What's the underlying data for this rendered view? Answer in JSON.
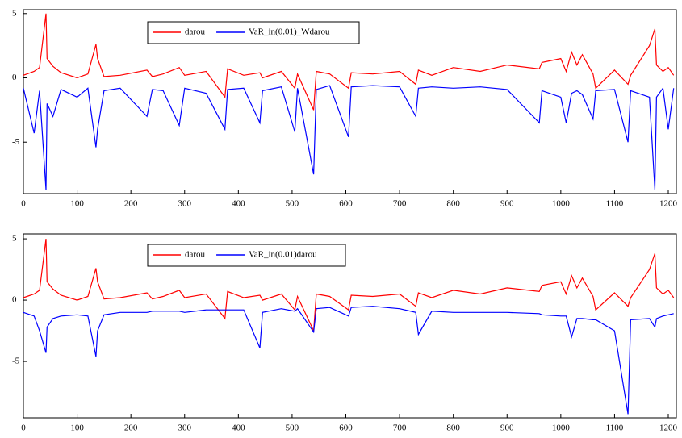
{
  "chart_data": [
    {
      "type": "line",
      "x": [
        0,
        20,
        30,
        42,
        44,
        55,
        70,
        100,
        120,
        135,
        138,
        150,
        180,
        230,
        240,
        260,
        290,
        300,
        340,
        375,
        380,
        410,
        440,
        445,
        480,
        505,
        510,
        540,
        545,
        570,
        605,
        610,
        650,
        700,
        730,
        735,
        760,
        800,
        850,
        900,
        960,
        965,
        1000,
        1010,
        1020,
        1030,
        1040,
        1060,
        1065,
        1100,
        1125,
        1130,
        1165,
        1175,
        1178,
        1190,
        1200,
        1210
      ],
      "series": [
        {
          "name": "darou",
          "color": "#ff0000",
          "values": [
            0.2,
            0.5,
            0.8,
            5.0,
            1.5,
            0.9,
            0.4,
            0.0,
            0.3,
            2.6,
            1.5,
            0.1,
            0.2,
            0.6,
            0.1,
            0.3,
            0.8,
            0.2,
            0.5,
            -1.5,
            0.7,
            0.2,
            0.4,
            0.0,
            0.5,
            -0.8,
            0.3,
            -2.5,
            0.5,
            0.3,
            -0.8,
            0.4,
            0.3,
            0.5,
            -0.5,
            0.6,
            0.2,
            0.8,
            0.5,
            1.0,
            0.7,
            1.2,
            1.5,
            0.5,
            2.0,
            1.0,
            1.8,
            0.3,
            -0.8,
            0.6,
            -0.5,
            0.2,
            2.5,
            3.8,
            1.0,
            0.5,
            0.8,
            0.2
          ]
        },
        {
          "name": "VaR_in(0.01)_Wdarou",
          "color": "#0000ff",
          "values": [
            -0.8,
            -4.3,
            -1.0,
            -8.7,
            -2.0,
            -3.0,
            -0.9,
            -1.5,
            -0.8,
            -5.4,
            -4.0,
            -1.0,
            -0.8,
            -3.0,
            -0.9,
            -1.0,
            -3.7,
            -0.8,
            -1.2,
            -4.0,
            -0.9,
            -0.8,
            -3.5,
            -1.0,
            -0.7,
            -4.2,
            -0.8,
            -7.5,
            -0.9,
            -0.6,
            -4.6,
            -0.7,
            -0.6,
            -0.7,
            -3.0,
            -0.8,
            -0.7,
            -0.8,
            -0.7,
            -0.9,
            -3.5,
            -1.0,
            -1.5,
            -3.5,
            -1.2,
            -1.0,
            -1.3,
            -3.2,
            -1.0,
            -0.9,
            -5.0,
            -1.0,
            -1.5,
            -8.7,
            -1.5,
            -0.8,
            -4.0,
            -0.8
          ]
        }
      ],
      "xlim": [
        0,
        1215
      ],
      "xticks": [
        0,
        100,
        200,
        300,
        400,
        500,
        600,
        700,
        800,
        900,
        1000,
        1100,
        1200
      ],
      "ylim": [
        -9.0,
        5.3
      ],
      "yticks": [
        5,
        0,
        -5
      ]
    },
    {
      "type": "line",
      "x": [
        0,
        20,
        30,
        42,
        44,
        55,
        70,
        100,
        120,
        135,
        138,
        150,
        180,
        230,
        240,
        260,
        290,
        300,
        340,
        375,
        380,
        410,
        440,
        445,
        480,
        505,
        510,
        540,
        545,
        570,
        605,
        610,
        650,
        700,
        730,
        735,
        760,
        800,
        850,
        900,
        960,
        965,
        1000,
        1010,
        1020,
        1030,
        1040,
        1060,
        1065,
        1100,
        1125,
        1130,
        1165,
        1175,
        1178,
        1190,
        1200,
        1210
      ],
      "series": [
        {
          "name": "darou",
          "color": "#ff0000",
          "values": [
            0.2,
            0.5,
            0.8,
            5.0,
            1.5,
            0.9,
            0.4,
            0.0,
            0.3,
            2.6,
            1.5,
            0.1,
            0.2,
            0.6,
            0.1,
            0.3,
            0.8,
            0.2,
            0.5,
            -1.5,
            0.7,
            0.2,
            0.4,
            0.0,
            0.5,
            -0.8,
            0.3,
            -2.5,
            0.5,
            0.3,
            -0.8,
            0.4,
            0.3,
            0.5,
            -0.5,
            0.6,
            0.2,
            0.8,
            0.5,
            1.0,
            0.7,
            1.2,
            1.5,
            0.5,
            2.0,
            1.0,
            1.8,
            0.3,
            -0.8,
            0.6,
            -0.5,
            0.2,
            2.5,
            3.8,
            1.0,
            0.5,
            0.8,
            0.2
          ]
        },
        {
          "name": "VaR_in(0.01)darou",
          "color": "#0000ff",
          "values": [
            -1.0,
            -1.3,
            -2.5,
            -4.3,
            -2.2,
            -1.5,
            -1.3,
            -1.2,
            -1.3,
            -4.6,
            -2.5,
            -1.2,
            -1.0,
            -1.0,
            -0.9,
            -0.9,
            -0.9,
            -1.0,
            -0.8,
            -0.8,
            -0.8,
            -0.8,
            -3.9,
            -1.0,
            -0.7,
            -0.9,
            -0.7,
            -2.6,
            -0.7,
            -0.6,
            -1.3,
            -0.6,
            -0.5,
            -0.7,
            -1.0,
            -2.8,
            -0.9,
            -1.0,
            -1.0,
            -1.0,
            -1.1,
            -1.2,
            -1.3,
            -1.3,
            -3.0,
            -1.5,
            -1.5,
            -1.6,
            -1.6,
            -2.5,
            -9.3,
            -1.6,
            -1.5,
            -2.2,
            -1.5,
            -1.3,
            -1.2,
            -1.1
          ]
        }
      ],
      "xlim": [
        0,
        1215
      ],
      "xticks": [
        0,
        100,
        200,
        300,
        400,
        500,
        600,
        700,
        800,
        900,
        1000,
        1100,
        1200
      ],
      "ylim": [
        -9.6,
        5.4
      ],
      "yticks": [
        5,
        0,
        -5
      ]
    }
  ]
}
